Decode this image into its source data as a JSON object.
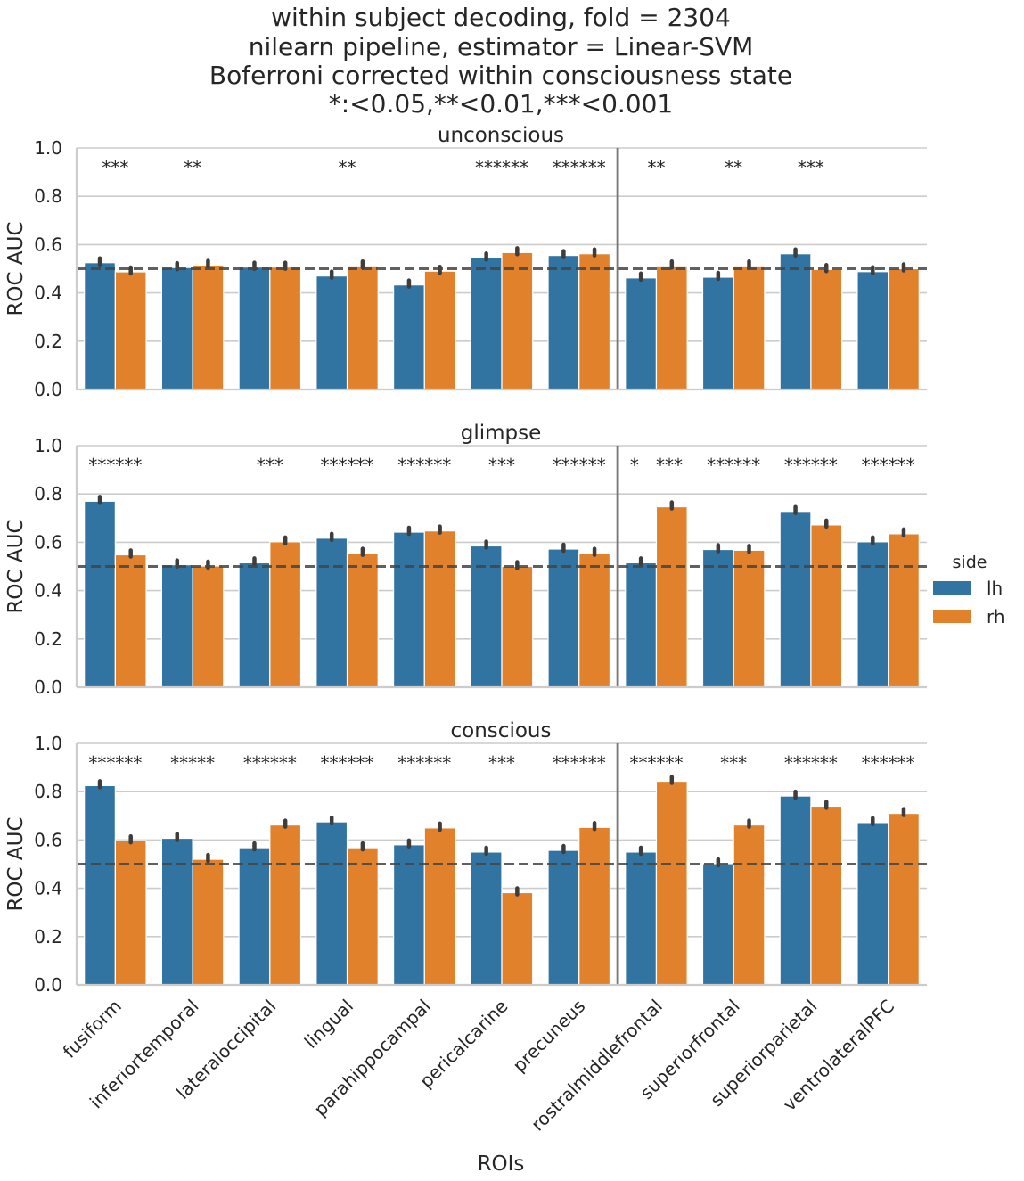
{
  "chart_data": {
    "type": "bar",
    "title_lines": [
      "within subject decoding, fold = 2304",
      "nilearn pipeline, estimator = Linear-SVM",
      "Boferroni corrected within consciousness state",
      "*:<0.05,**<0.01,***<0.001"
    ],
    "xlabel": "ROIs",
    "ylabel": "ROC AUC",
    "ylim": [
      0,
      1
    ],
    "yticks": [
      "0.0",
      "0.2",
      "0.4",
      "0.6",
      "0.8",
      "1.0"
    ],
    "grid": "horizontal",
    "chance_level": 0.5,
    "divider_after_category": "precuneus",
    "categories": [
      "fusiform",
      "inferiortemporal",
      "lateraloccipital",
      "lingual",
      "parahippocampal",
      "pericalcarine",
      "precuneus",
      "rostralmiddlefrontal",
      "superiorfrontal",
      "superiorparietal",
      "ventrolateralPFC"
    ],
    "legend": {
      "title": "side",
      "placement": "center-right",
      "items": [
        {
          "name": "lh",
          "color": "#3274a1"
        },
        {
          "name": "rh",
          "color": "#e1812c"
        }
      ]
    },
    "panels": [
      {
        "title": "unconscious",
        "series": [
          {
            "name": "lh",
            "values": [
              0.525,
              0.505,
              0.507,
              0.47,
              0.433,
              0.545,
              0.555,
              0.462,
              0.465,
              0.562,
              0.488
            ]
          },
          {
            "name": "rh",
            "values": [
              0.487,
              0.515,
              0.507,
              0.512,
              0.49,
              0.567,
              0.562,
              0.512,
              0.512,
              0.497,
              0.5
            ]
          }
        ],
        "significance": [
          "***",
          "**",
          "",
          "**",
          "",
          "******",
          "******",
          "**",
          "**",
          "***",
          ""
        ]
      },
      {
        "title": "glimpse",
        "series": [
          {
            "name": "lh",
            "values": [
              0.77,
              0.507,
              0.515,
              0.617,
              0.642,
              0.585,
              0.572,
              0.515,
              0.57,
              0.728,
              0.602
            ]
          },
          {
            "name": "rh",
            "values": [
              0.548,
              0.502,
              0.602,
              0.555,
              0.647,
              0.5,
              0.555,
              0.747,
              0.567,
              0.672,
              0.635
            ]
          }
        ],
        "significance": [
          "******",
          "",
          "***",
          "******",
          "******",
          "***",
          "******",
          "*   ***",
          "******",
          "******",
          "******"
        ]
      },
      {
        "title": "conscious",
        "series": [
          {
            "name": "lh",
            "values": [
              0.825,
              0.607,
              0.568,
              0.675,
              0.58,
              0.55,
              0.557,
              0.55,
              0.502,
              0.782,
              0.672
            ]
          },
          {
            "name": "rh",
            "values": [
              0.597,
              0.52,
              0.662,
              0.568,
              0.65,
              0.382,
              0.652,
              0.843,
              0.662,
              0.74,
              0.71
            ]
          }
        ],
        "significance": [
          "******",
          "*****",
          "******",
          "******",
          "******",
          "***",
          "******",
          "******",
          "***",
          "******",
          "******"
        ]
      }
    ]
  }
}
